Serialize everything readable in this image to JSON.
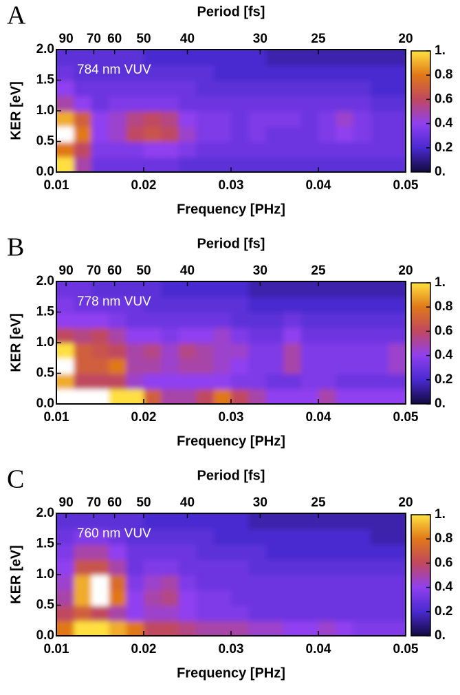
{
  "chart_data": [
    {
      "type": "heatmap",
      "panel_label": "A",
      "annotation": "784 nm VUV",
      "xlabel": "Frequency [PHz]",
      "ylabel": "KER [eV]",
      "x2label": "Period [fs]",
      "xlim": [
        0.01,
        0.05
      ],
      "xticks": [
        0.01,
        0.02,
        0.03,
        0.04,
        0.05
      ],
      "ylim": [
        0,
        2
      ],
      "yticks": [
        {
          "value": 0,
          "label": "0.0"
        },
        0.5,
        {
          "value": 1,
          "label": "1.0"
        },
        1.5,
        {
          "value": 2,
          "label": "2.0"
        }
      ],
      "x2lim": [
        100,
        20
      ],
      "x2ticks": [
        90,
        70,
        60,
        50,
        40,
        30,
        25,
        20
      ],
      "clim": [
        0,
        1
      ],
      "cticks": [
        {
          "value": 0,
          "label": "0."
        },
        0.2,
        0.4,
        0.6,
        0.8,
        {
          "value": 1,
          "label": "1."
        }
      ],
      "colormap": [
        "#120a40",
        "#4a2ad0",
        "#9040f0",
        "#c04860",
        "#e07818",
        "#ffe040"
      ],
      "over_color": "#ffffff",
      "x": [
        0.011,
        0.013,
        0.015,
        0.017,
        0.019,
        0.021,
        0.023,
        0.025,
        0.027,
        0.029,
        0.031,
        0.033,
        0.035,
        0.037,
        0.039,
        0.041,
        0.043,
        0.045,
        0.047,
        0.049
      ],
      "y": [
        0.125,
        0.375,
        0.625,
        0.875,
        1.125,
        1.375,
        1.625,
        1.875
      ],
      "z": [
        [
          1.0,
          0.5,
          0.3,
          0.3,
          0.3,
          0.3,
          0.3,
          0.25,
          0.25,
          0.25,
          0.25,
          0.25,
          0.25,
          0.25,
          0.25,
          0.25,
          0.25,
          0.25,
          0.25,
          0.25
        ],
        [
          0.8,
          0.6,
          0.35,
          0.35,
          0.35,
          0.4,
          0.4,
          0.35,
          0.3,
          0.3,
          0.3,
          0.3,
          0.3,
          0.3,
          0.3,
          0.3,
          0.3,
          0.3,
          0.3,
          0.3
        ],
        [
          1.2,
          0.8,
          0.4,
          0.45,
          0.6,
          0.65,
          0.6,
          0.45,
          0.35,
          0.35,
          0.3,
          0.35,
          0.3,
          0.3,
          0.3,
          0.35,
          0.4,
          0.35,
          0.3,
          0.3
        ],
        [
          0.9,
          0.7,
          0.4,
          0.45,
          0.55,
          0.6,
          0.55,
          0.4,
          0.35,
          0.35,
          0.3,
          0.35,
          0.35,
          0.35,
          0.3,
          0.35,
          0.45,
          0.35,
          0.3,
          0.3
        ],
        [
          0.5,
          0.4,
          0.3,
          0.35,
          0.35,
          0.35,
          0.35,
          0.3,
          0.3,
          0.3,
          0.3,
          0.3,
          0.3,
          0.3,
          0.3,
          0.3,
          0.3,
          0.3,
          0.25,
          0.25
        ],
        [
          0.4,
          0.3,
          0.3,
          0.3,
          0.3,
          0.3,
          0.3,
          0.3,
          0.25,
          0.25,
          0.25,
          0.25,
          0.25,
          0.25,
          0.25,
          0.25,
          0.25,
          0.25,
          0.2,
          0.2
        ],
        [
          0.3,
          0.25,
          0.25,
          0.25,
          0.25,
          0.25,
          0.25,
          0.25,
          0.25,
          0.2,
          0.2,
          0.2,
          0.2,
          0.2,
          0.2,
          0.2,
          0.2,
          0.2,
          0.2,
          0.2
        ],
        [
          0.25,
          0.25,
          0.25,
          0.25,
          0.25,
          0.2,
          0.2,
          0.2,
          0.2,
          0.2,
          0.2,
          0.2,
          0.15,
          0.15,
          0.15,
          0.15,
          0.15,
          0.15,
          0.15,
          0.15
        ]
      ]
    },
    {
      "type": "heatmap",
      "panel_label": "B",
      "annotation": "778 nm VUV",
      "xlabel": "Frequency [PHz]",
      "ylabel": "KER [eV]",
      "x2label": "Period [fs]",
      "xlim": [
        0.01,
        0.05
      ],
      "xticks": [
        0.01,
        0.02,
        0.03,
        0.04,
        0.05
      ],
      "ylim": [
        0,
        2
      ],
      "yticks": [
        {
          "value": 0,
          "label": "0.0"
        },
        0.5,
        {
          "value": 1,
          "label": "1.0"
        },
        1.5,
        {
          "value": 2,
          "label": "2.0"
        }
      ],
      "x2lim": [
        100,
        20
      ],
      "x2ticks": [
        90,
        70,
        60,
        50,
        40,
        30,
        25,
        20
      ],
      "clim": [
        0,
        1
      ],
      "cticks": [
        {
          "value": 0,
          "label": "0."
        },
        0.2,
        0.4,
        0.6,
        0.8,
        {
          "value": 1,
          "label": "1."
        }
      ],
      "colormap": [
        "#120a40",
        "#4a2ad0",
        "#9040f0",
        "#c04860",
        "#e07818",
        "#ffe040"
      ],
      "over_color": "#ffffff",
      "x": [
        0.011,
        0.013,
        0.015,
        0.017,
        0.019,
        0.021,
        0.023,
        0.025,
        0.027,
        0.029,
        0.031,
        0.033,
        0.035,
        0.037,
        0.039,
        0.041,
        0.043,
        0.045,
        0.047,
        0.049
      ],
      "y": [
        0.125,
        0.375,
        0.625,
        0.875,
        1.125,
        1.375,
        1.625,
        1.875
      ],
      "z": [
        [
          1.2,
          1.1,
          1.1,
          1.0,
          1.0,
          0.7,
          0.5,
          0.5,
          0.6,
          0.8,
          0.6,
          0.5,
          0.4,
          0.4,
          0.4,
          0.5,
          0.4,
          0.4,
          0.4,
          0.4
        ],
        [
          0.9,
          0.6,
          0.6,
          0.6,
          0.45,
          0.4,
          0.4,
          0.4,
          0.4,
          0.4,
          0.35,
          0.35,
          0.3,
          0.3,
          0.35,
          0.35,
          0.3,
          0.3,
          0.3,
          0.3
        ],
        [
          1.2,
          0.7,
          0.7,
          0.8,
          0.5,
          0.5,
          0.45,
          0.5,
          0.5,
          0.45,
          0.4,
          0.35,
          0.35,
          0.5,
          0.35,
          0.35,
          0.35,
          0.35,
          0.35,
          0.45
        ],
        [
          1.0,
          0.7,
          0.65,
          0.6,
          0.5,
          0.55,
          0.45,
          0.55,
          0.5,
          0.45,
          0.45,
          0.35,
          0.35,
          0.5,
          0.35,
          0.35,
          0.35,
          0.35,
          0.35,
          0.45
        ],
        [
          0.6,
          0.55,
          0.6,
          0.5,
          0.4,
          0.4,
          0.35,
          0.4,
          0.4,
          0.45,
          0.35,
          0.3,
          0.3,
          0.4,
          0.3,
          0.3,
          0.3,
          0.3,
          0.3,
          0.3
        ],
        [
          0.4,
          0.4,
          0.4,
          0.35,
          0.3,
          0.3,
          0.3,
          0.3,
          0.3,
          0.3,
          0.25,
          0.25,
          0.25,
          0.3,
          0.25,
          0.25,
          0.25,
          0.25,
          0.25,
          0.25
        ],
        [
          0.35,
          0.3,
          0.3,
          0.3,
          0.3,
          0.25,
          0.25,
          0.25,
          0.25,
          0.25,
          0.25,
          0.2,
          0.2,
          0.2,
          0.2,
          0.2,
          0.2,
          0.2,
          0.2,
          0.2
        ],
        [
          0.3,
          0.3,
          0.25,
          0.25,
          0.25,
          0.25,
          0.2,
          0.2,
          0.2,
          0.2,
          0.2,
          0.15,
          0.15,
          0.15,
          0.15,
          0.15,
          0.15,
          0.15,
          0.15,
          0.15
        ]
      ]
    },
    {
      "type": "heatmap",
      "panel_label": "C",
      "annotation": "760 nm VUV",
      "xlabel": "Frequency [PHz]",
      "ylabel": "KER [eV]",
      "x2label": "Period [fs]",
      "xlim": [
        0.01,
        0.05
      ],
      "xticks": [
        0.01,
        0.02,
        0.03,
        0.04,
        0.05
      ],
      "ylim": [
        0,
        2
      ],
      "yticks": [
        {
          "value": 0,
          "label": "0.0"
        },
        0.5,
        {
          "value": 1,
          "label": "1.0"
        },
        1.5,
        {
          "value": 2,
          "label": "2.0"
        }
      ],
      "x2lim": [
        100,
        20
      ],
      "x2ticks": [
        90,
        70,
        60,
        50,
        40,
        30,
        25,
        20
      ],
      "clim": [
        0,
        1
      ],
      "cticks": [
        {
          "value": 0,
          "label": "0."
        },
        0.2,
        0.4,
        0.6,
        0.8,
        {
          "value": 1,
          "label": "1."
        }
      ],
      "colormap": [
        "#120a40",
        "#4a2ad0",
        "#9040f0",
        "#c04860",
        "#e07818",
        "#ffe040"
      ],
      "over_color": "#ffffff",
      "x": [
        0.011,
        0.013,
        0.015,
        0.017,
        0.019,
        0.021,
        0.023,
        0.025,
        0.027,
        0.029,
        0.031,
        0.033,
        0.035,
        0.037,
        0.039,
        0.041,
        0.043,
        0.045,
        0.047,
        0.049
      ],
      "y": [
        0.125,
        0.375,
        0.625,
        0.875,
        1.125,
        1.375,
        1.625,
        1.875
      ],
      "z": [
        [
          0.8,
          1.0,
          1.0,
          0.9,
          0.8,
          0.6,
          0.6,
          0.55,
          0.5,
          0.5,
          0.5,
          0.45,
          0.45,
          0.4,
          0.4,
          0.45,
          0.4,
          0.35,
          0.35,
          0.35
        ],
        [
          0.6,
          0.7,
          0.6,
          0.5,
          0.4,
          0.45,
          0.45,
          0.4,
          0.35,
          0.35,
          0.35,
          0.3,
          0.3,
          0.3,
          0.3,
          0.3,
          0.3,
          0.3,
          0.3,
          0.3
        ],
        [
          0.5,
          0.9,
          1.1,
          0.8,
          0.4,
          0.5,
          0.55,
          0.4,
          0.35,
          0.35,
          0.3,
          0.3,
          0.3,
          0.3,
          0.3,
          0.3,
          0.3,
          0.3,
          0.3,
          0.3
        ],
        [
          0.45,
          0.9,
          1.1,
          0.75,
          0.35,
          0.45,
          0.5,
          0.35,
          0.3,
          0.3,
          0.3,
          0.3,
          0.3,
          0.3,
          0.3,
          0.3,
          0.3,
          0.3,
          0.3,
          0.3
        ],
        [
          0.4,
          0.65,
          0.65,
          0.5,
          0.3,
          0.35,
          0.35,
          0.3,
          0.3,
          0.3,
          0.3,
          0.25,
          0.25,
          0.25,
          0.25,
          0.25,
          0.25,
          0.25,
          0.25,
          0.25
        ],
        [
          0.35,
          0.5,
          0.5,
          0.4,
          0.3,
          0.3,
          0.3,
          0.3,
          0.25,
          0.25,
          0.25,
          0.25,
          0.2,
          0.2,
          0.2,
          0.2,
          0.2,
          0.2,
          0.2,
          0.2
        ],
        [
          0.3,
          0.35,
          0.35,
          0.3,
          0.25,
          0.25,
          0.25,
          0.25,
          0.25,
          0.2,
          0.2,
          0.2,
          0.2,
          0.2,
          0.2,
          0.2,
          0.2,
          0.2,
          0.15,
          0.15
        ],
        [
          0.25,
          0.25,
          0.25,
          0.25,
          0.25,
          0.2,
          0.2,
          0.2,
          0.2,
          0.2,
          0.2,
          0.15,
          0.15,
          0.15,
          0.15,
          0.15,
          0.15,
          0.15,
          0.15,
          0.15
        ]
      ]
    }
  ]
}
